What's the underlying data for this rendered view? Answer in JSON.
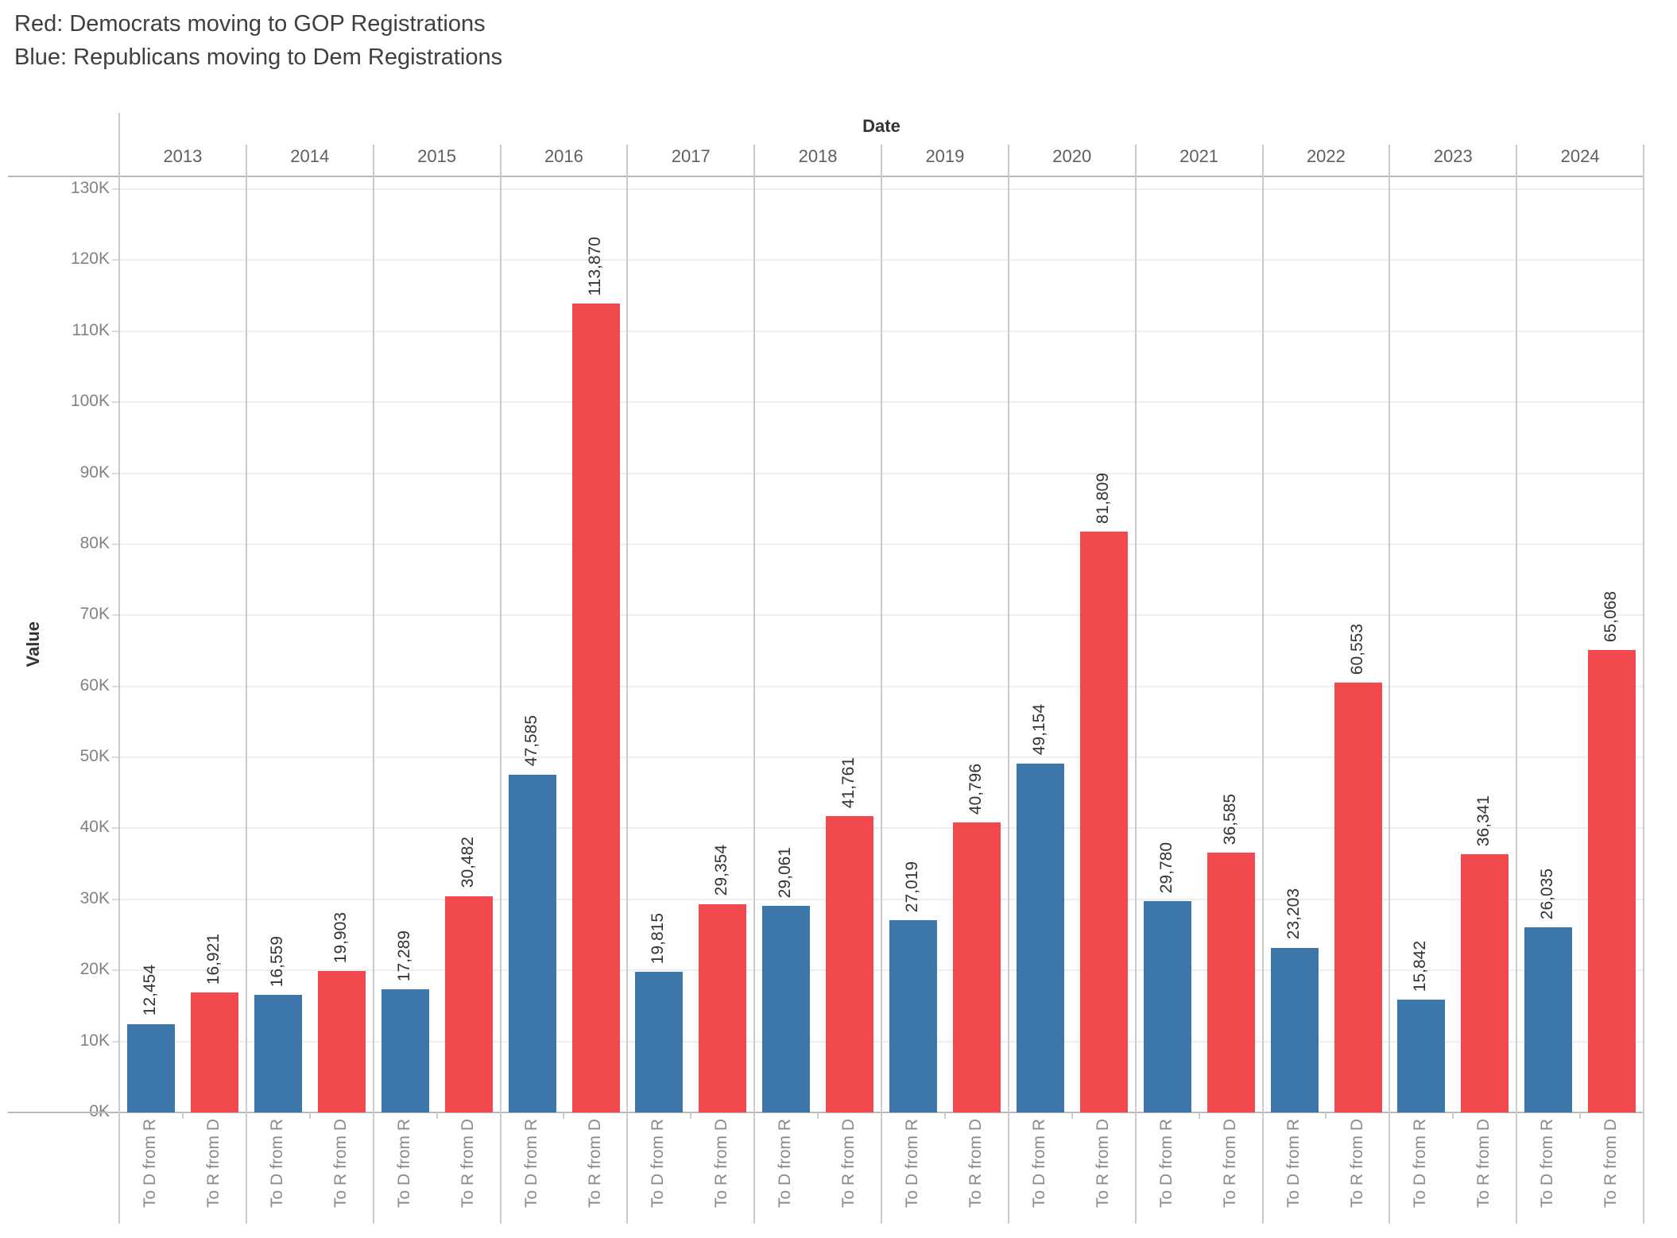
{
  "title": {
    "line1": "Red: Democrats moving to GOP Registrations",
    "line2": "Blue: Republicans moving to Dem Registrations"
  },
  "chart_data": {
    "type": "bar",
    "facet_axis_title": "Date",
    "value_axis_title": "Value",
    "categories": [
      "2013",
      "2014",
      "2015",
      "2016",
      "2017",
      "2018",
      "2019",
      "2020",
      "2021",
      "2022",
      "2023",
      "2024"
    ],
    "series": [
      {
        "name": "To D from R",
        "color": "#3D77A9",
        "values": [
          12454,
          16559,
          17289,
          47585,
          19815,
          29061,
          27019,
          49154,
          29780,
          23203,
          15842,
          26035
        ]
      },
      {
        "name": "To R from D",
        "color": "#F2494F",
        "values": [
          16921,
          19903,
          30482,
          113870,
          29354,
          41761,
          40796,
          81809,
          36585,
          60553,
          36341,
          65068
        ]
      }
    ],
    "ylim": [
      0,
      130000
    ],
    "ytick_step": 10000,
    "ytick_label_suffix": "K",
    "grid": true,
    "legend_position": "none",
    "bar_label_rotation": -90,
    "category_label_rotation": -90
  },
  "colors": {
    "dem_blue": "#3D77A9",
    "gop_red": "#F2494F",
    "gridline": "#EFEFEF",
    "panel_border": "#CBCBCB",
    "axis_border": "#B9B9B9",
    "axis_tick": "#DCDCDC",
    "ytick_label": "#828282",
    "year_label": "#5F5F5F",
    "bar_label": "#333333",
    "category_label": "#8A8A8A",
    "title_text": "#3F3F3F"
  }
}
